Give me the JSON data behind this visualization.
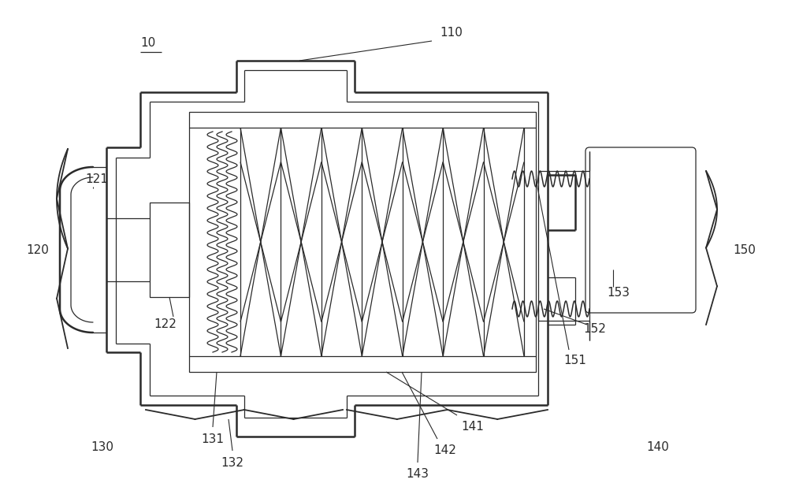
{
  "bg_color": "#ffffff",
  "line_color": "#2a2a2a",
  "lw": 1.8,
  "lw_thin": 1.2,
  "lw_inner": 0.9,
  "figsize": [
    10.0,
    6.32
  ],
  "dpi": 100
}
